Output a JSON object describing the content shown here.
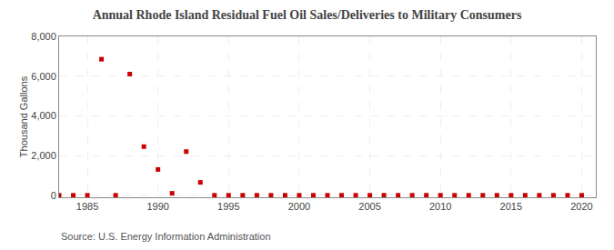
{
  "chart_data": {
    "type": "scatter",
    "title": "Annual Rhode Island Residual Fuel Oil Sales/Deliveries to Military Consumers",
    "ylabel": "Thousand Gallons",
    "annotations": [
      "Source: U.S. Energy Information Administration"
    ],
    "x": [
      1983,
      1984,
      1985,
      1986,
      1987,
      1988,
      1989,
      1990,
      1991,
      1992,
      1993,
      1994,
      1995,
      1996,
      1997,
      1998,
      1999,
      2000,
      2001,
      2002,
      2003,
      2004,
      2005,
      2006,
      2007,
      2008,
      2009,
      2010,
      2011,
      2012,
      2013,
      2014,
      2015,
      2016,
      2017,
      2018,
      2019,
      2020
    ],
    "values": [
      0,
      0,
      0,
      6850,
      0,
      6100,
      2450,
      1300,
      100,
      2200,
      650,
      0,
      0,
      0,
      0,
      0,
      0,
      0,
      0,
      0,
      0,
      0,
      0,
      0,
      0,
      0,
      0,
      0,
      0,
      0,
      0,
      0,
      0,
      0,
      0,
      0,
      0,
      0
    ],
    "color": "#cc0000",
    "marker": "square",
    "xlim": [
      1983,
      2021
    ],
    "xticks": [
      1985,
      1990,
      1995,
      2000,
      2005,
      2010,
      2015,
      2020
    ],
    "ylim": [
      -100,
      8000
    ],
    "yticks": [
      0,
      {
        "value": 2000,
        "label": "2,000"
      },
      {
        "value": 4000,
        "label": "4,000"
      },
      {
        "value": 6000,
        "label": "6,000"
      },
      {
        "value": 8000,
        "label": "8,000"
      }
    ],
    "grid": true
  }
}
